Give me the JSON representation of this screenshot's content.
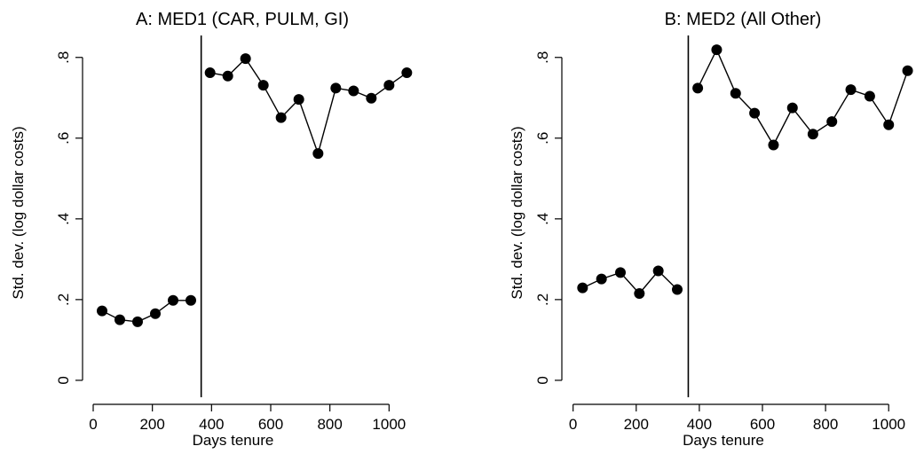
{
  "chart_data": [
    {
      "type": "line",
      "title": "A: MED1 (CAR, PULM, GI)",
      "xlabel": "Days tenure",
      "ylabel": "Std. dev. (log dollar costs)",
      "xlim": [
        -30,
        1095
      ],
      "ylim": [
        -0.02,
        0.85
      ],
      "xticks": [
        0,
        200,
        400,
        600,
        800,
        1000
      ],
      "xtick_labels": [
        "0",
        "200",
        "400",
        "600",
        "800",
        "1000"
      ],
      "yticks": [
        0,
        0.2,
        0.4,
        0.6,
        0.8
      ],
      "ytick_labels": [
        "0",
        ".2",
        ".4",
        ".6",
        ".8"
      ],
      "vline": 365,
      "grid": false,
      "series": [
        {
          "segment": "before",
          "x": [
            30,
            90,
            150,
            210,
            270,
            330
          ],
          "y": [
            0.172,
            0.15,
            0.145,
            0.165,
            0.198,
            0.198
          ]
        },
        {
          "segment": "after",
          "x": [
            395,
            455,
            515,
            575,
            635,
            695,
            760,
            820,
            880,
            940,
            1000,
            1060
          ],
          "y": [
            0.762,
            0.754,
            0.797,
            0.731,
            0.651,
            0.696,
            0.562,
            0.724,
            0.717,
            0.699,
            0.731,
            0.762
          ]
        }
      ]
    },
    {
      "type": "line",
      "title": "B: MED2 (All Other)",
      "xlabel": "Days tenure",
      "ylabel": "Std. dev. (log dollar costs)",
      "xlim": [
        -30,
        1095
      ],
      "ylim": [
        -0.02,
        0.85
      ],
      "xticks": [
        0,
        200,
        400,
        600,
        800,
        1000
      ],
      "xtick_labels": [
        "0",
        "200",
        "400",
        "600",
        "800",
        "1000"
      ],
      "yticks": [
        0,
        0.2,
        0.4,
        0.6,
        0.8
      ],
      "ytick_labels": [
        "0",
        ".2",
        ".4",
        ".6",
        ".8"
      ],
      "vline": 365,
      "grid": false,
      "series": [
        {
          "segment": "before",
          "x": [
            30,
            90,
            150,
            210,
            270,
            330
          ],
          "y": [
            0.229,
            0.251,
            0.267,
            0.215,
            0.271,
            0.225
          ]
        },
        {
          "segment": "after",
          "x": [
            395,
            455,
            515,
            575,
            635,
            695,
            760,
            820,
            880,
            940,
            1000,
            1060
          ],
          "y": [
            0.724,
            0.819,
            0.711,
            0.662,
            0.583,
            0.675,
            0.61,
            0.641,
            0.72,
            0.704,
            0.633,
            0.767
          ]
        }
      ]
    }
  ]
}
